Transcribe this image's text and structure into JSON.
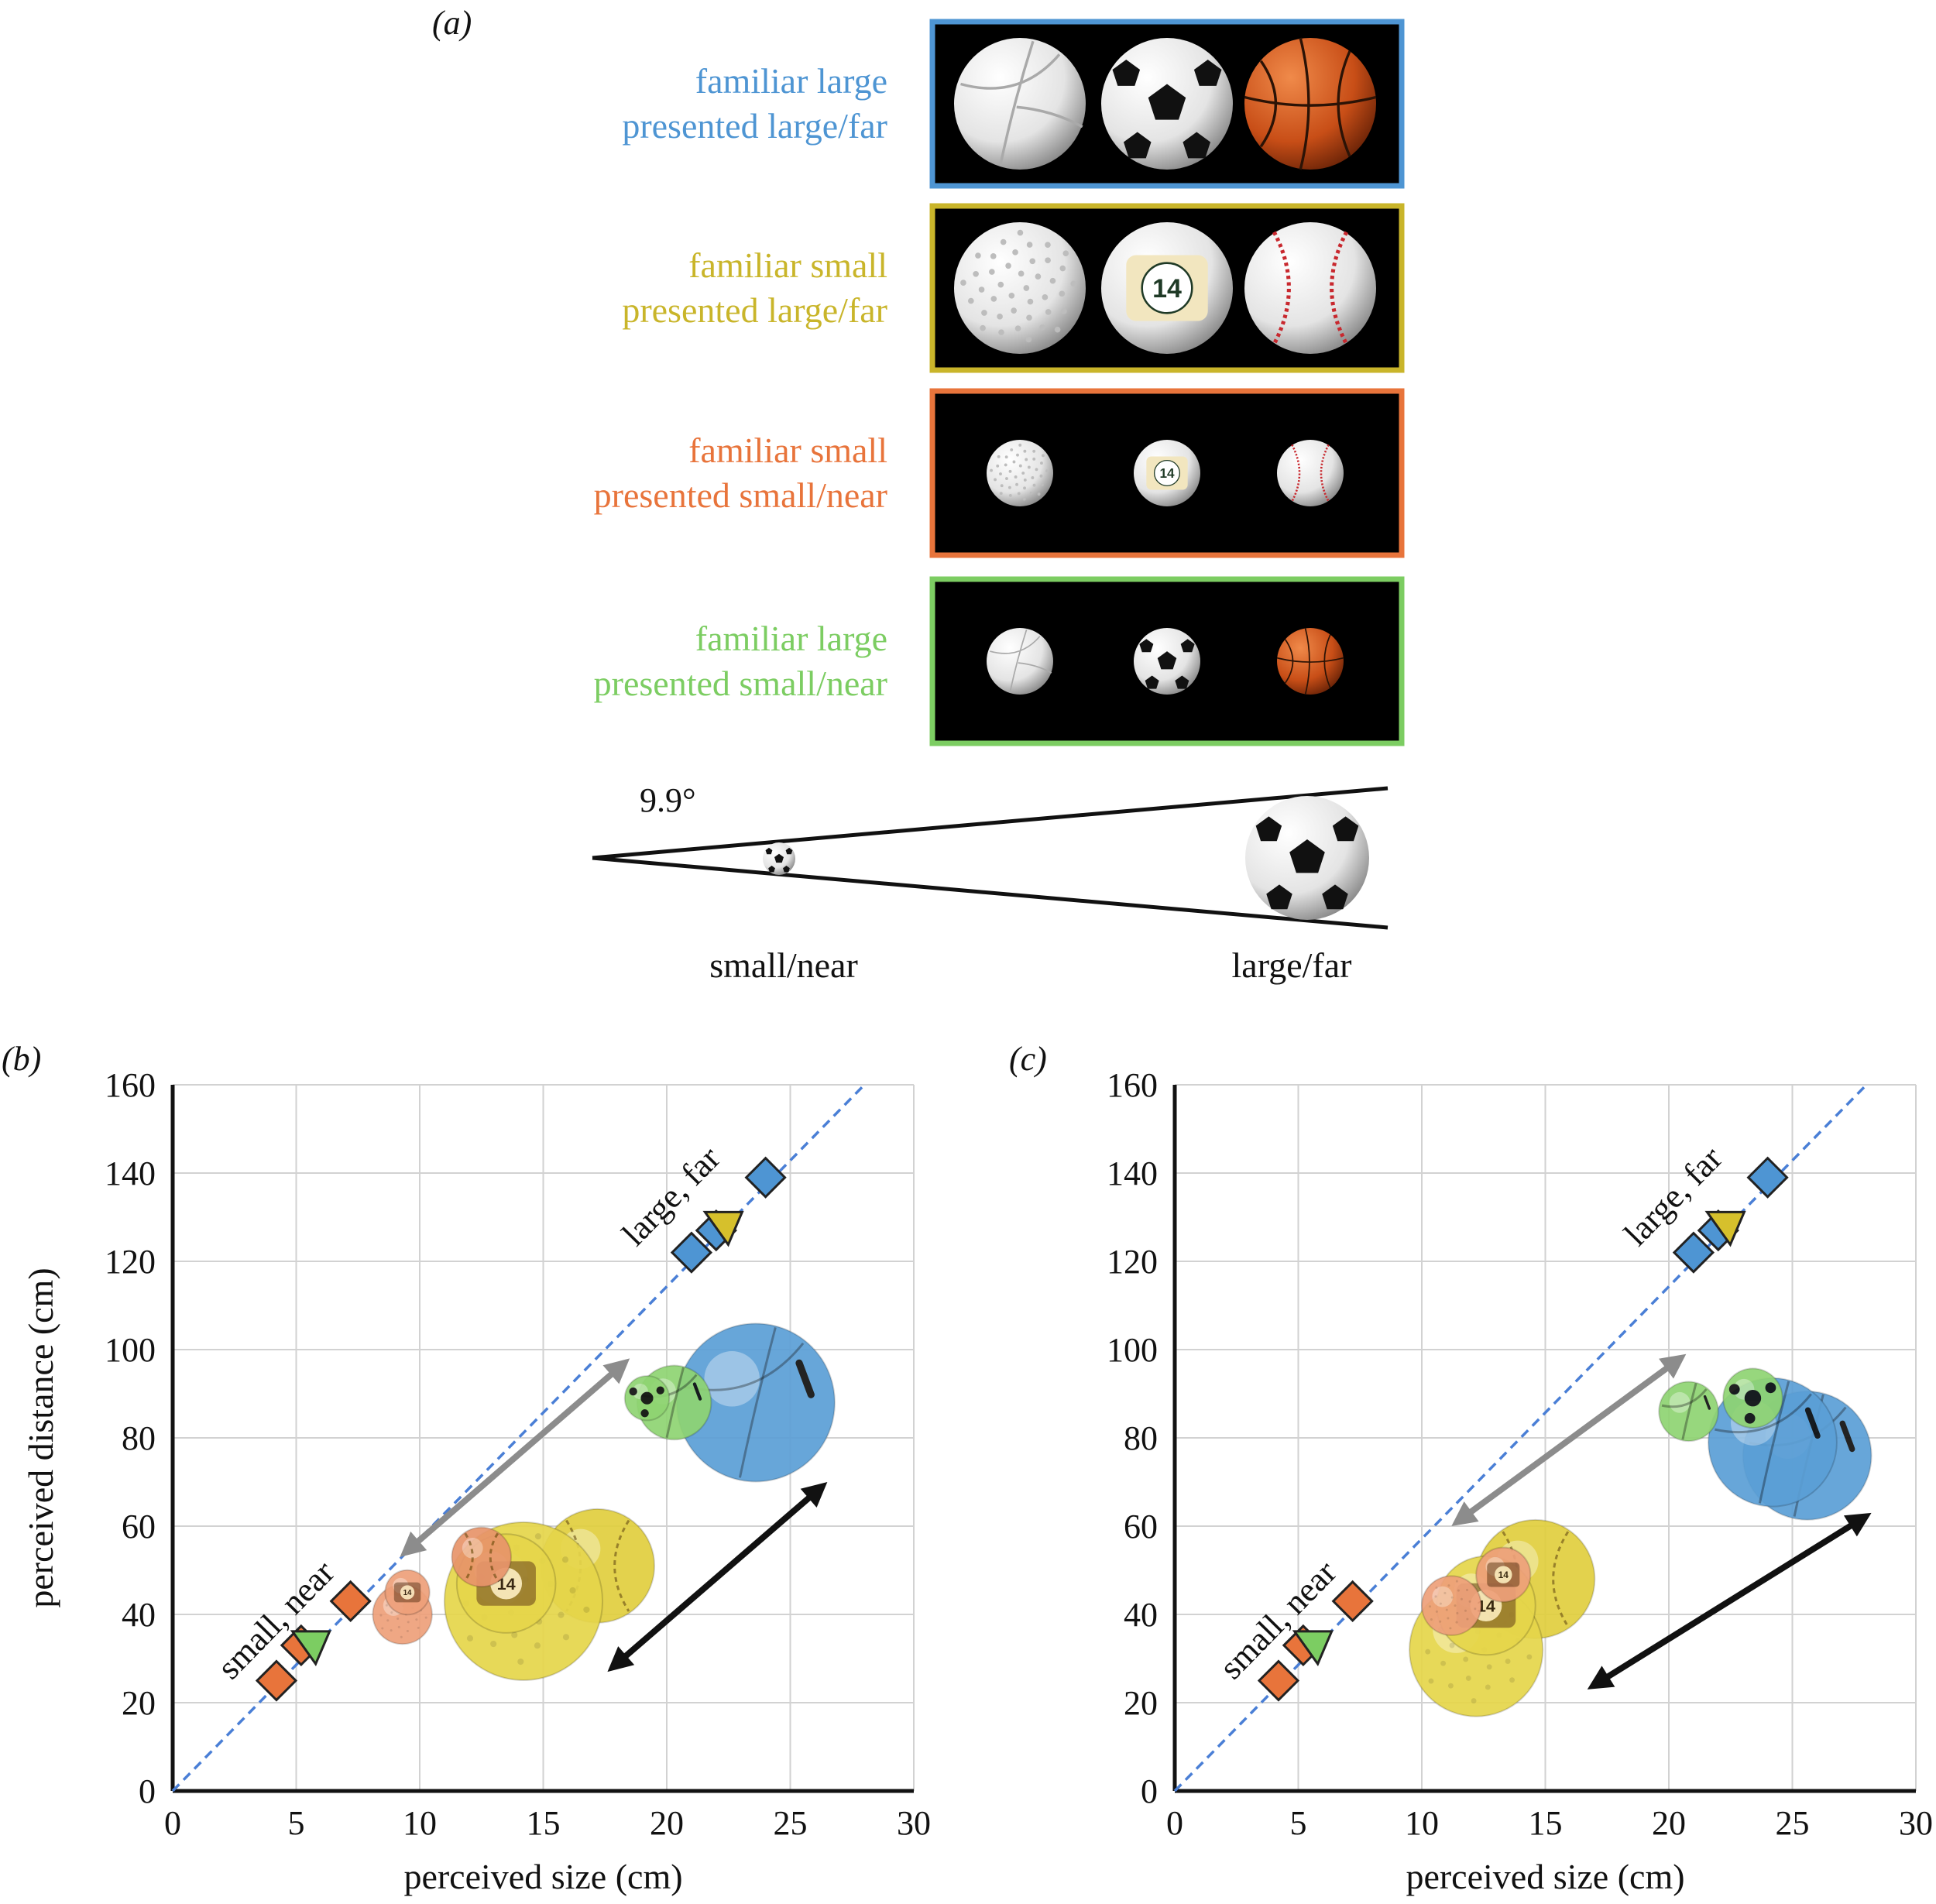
{
  "panel_a": {
    "label": "(a)",
    "rows": [
      {
        "line1": "familiar large",
        "line2": "presented large/far",
        "color": "#4e95d3",
        "balls": [
          "volleyball",
          "soccer-ball",
          "basketball"
        ],
        "size": "large"
      },
      {
        "line1": "familiar small",
        "line2": "presented large/far",
        "color": "#c9b52a",
        "balls": [
          "golf-ball",
          "billiard-ball",
          "baseball"
        ],
        "size": "large"
      },
      {
        "line1": "familiar small",
        "line2": "presented small/near",
        "color": "#e8743b",
        "balls": [
          "golf-ball",
          "billiard-ball",
          "baseball"
        ],
        "size": "small"
      },
      {
        "line1": "familiar large",
        "line2": "presented small/near",
        "color": "#7ccd62",
        "balls": [
          "volleyball",
          "soccer-ball",
          "basketball"
        ],
        "size": "small"
      }
    ],
    "billiard_number": "14",
    "angle_label": "9.9°",
    "near_label": "small/near",
    "far_label": "large/far"
  },
  "chart_data": [
    {
      "panel_label": "(b)",
      "type": "scatter",
      "xlabel": "perceived size (cm)",
      "ylabel": "perceived distance (cm)",
      "xlim": [
        0,
        30
      ],
      "ylim": [
        0,
        160
      ],
      "xticks": [
        0,
        5,
        10,
        15,
        20,
        25,
        30
      ],
      "yticks": [
        0,
        20,
        40,
        60,
        80,
        100,
        120,
        140,
        160
      ],
      "grid": true,
      "reference_line": {
        "x": [
          0,
          28
        ],
        "y": [
          0,
          160
        ],
        "style": "dashed"
      },
      "series": [
        {
          "marker": "diamond",
          "color": "#4e95d3",
          "points": [
            [
              21,
              122
            ],
            [
              22,
              127
            ],
            [
              24,
              139
            ]
          ]
        },
        {
          "marker": "triangle",
          "color": "#d6c02c",
          "points": [
            [
              22.3,
              128
            ]
          ]
        },
        {
          "marker": "diamond",
          "color": "#e8743b",
          "points": [
            [
              4.2,
              25
            ],
            [
              5.2,
              33
            ],
            [
              7.2,
              43
            ]
          ]
        },
        {
          "marker": "triangle",
          "color": "#7ccd62",
          "points": [
            [
              5.6,
              33
            ]
          ]
        }
      ],
      "annotations": [
        {
          "text": "large, far",
          "x": 20.5,
          "y": 133
        },
        {
          "text": "small, near",
          "x": 4.5,
          "y": 37
        }
      ],
      "ball_icons": [
        {
          "kind": "volleyball",
          "color": "#5b9fd6",
          "x": 23.6,
          "y": 88,
          "r": 3.2
        },
        {
          "kind": "volleyball",
          "color": "#8fd472",
          "x": 20.3,
          "y": 88,
          "r": 1.5
        },
        {
          "kind": "soccer",
          "color": "#8fd472",
          "x": 19.2,
          "y": 89,
          "r": 0.9
        },
        {
          "kind": "baseball",
          "color": "#e1cf3e",
          "x": 17.2,
          "y": 51,
          "r": 2.3
        },
        {
          "kind": "golf",
          "color": "#e6d64a",
          "x": 14.2,
          "y": 43,
          "r": 3.2
        },
        {
          "kind": "billiard",
          "color": "#e6d64a",
          "x": 13.5,
          "y": 47,
          "r": 2.0
        },
        {
          "kind": "baseball",
          "color": "#e8946a",
          "x": 12.5,
          "y": 53,
          "r": 1.2
        },
        {
          "kind": "golf",
          "color": "#eea07a",
          "x": 9.3,
          "y": 40,
          "r": 1.2
        },
        {
          "kind": "billiard",
          "color": "#eea07a",
          "x": 9.5,
          "y": 45,
          "r": 0.9
        }
      ],
      "arrows": [
        {
          "color": "#8c8c8c",
          "x1": 9.2,
          "y1": 53,
          "x2": 18.5,
          "y2": 98,
          "double": true
        },
        {
          "color": "#111111",
          "x1": 17.6,
          "y1": 27,
          "x2": 26.5,
          "y2": 70,
          "double": true
        }
      ]
    },
    {
      "panel_label": "(c)",
      "type": "scatter",
      "xlabel": "perceived size (cm)",
      "ylabel": "",
      "xlim": [
        0,
        30
      ],
      "ylim": [
        0,
        160
      ],
      "xticks": [
        0,
        5,
        10,
        15,
        20,
        25,
        30
      ],
      "yticks": [
        0,
        20,
        40,
        60,
        80,
        100,
        120,
        140,
        160
      ],
      "grid": true,
      "reference_line": {
        "x": [
          0,
          28
        ],
        "y": [
          0,
          160
        ],
        "style": "dashed"
      },
      "series": [
        {
          "marker": "diamond",
          "color": "#4e95d3",
          "points": [
            [
              21,
              122
            ],
            [
              22,
              127
            ],
            [
              24,
              139
            ]
          ]
        },
        {
          "marker": "triangle",
          "color": "#d6c02c",
          "points": [
            [
              22.3,
              128
            ]
          ]
        },
        {
          "marker": "diamond",
          "color": "#e8743b",
          "points": [
            [
              4.2,
              25
            ],
            [
              5.2,
              33
            ],
            [
              7.2,
              43
            ]
          ]
        },
        {
          "marker": "triangle",
          "color": "#7ccd62",
          "points": [
            [
              5.6,
              33
            ]
          ]
        }
      ],
      "annotations": [
        {
          "text": "large, far",
          "x": 20.5,
          "y": 133
        },
        {
          "text": "small, near",
          "x": 4.5,
          "y": 37
        }
      ],
      "ball_icons": [
        {
          "kind": "volleyball",
          "color": "#5b9fd6",
          "x": 25.6,
          "y": 76,
          "r": 2.6
        },
        {
          "kind": "volleyball",
          "color": "#5b9fd6",
          "x": 24.2,
          "y": 79,
          "r": 2.6
        },
        {
          "kind": "volleyball",
          "color": "#8fd472",
          "x": 20.8,
          "y": 86,
          "r": 1.2
        },
        {
          "kind": "soccer",
          "color": "#8fd472",
          "x": 23.4,
          "y": 89,
          "r": 1.2
        },
        {
          "kind": "baseball",
          "color": "#e1cf3e",
          "x": 14.6,
          "y": 48,
          "r": 2.4
        },
        {
          "kind": "golf",
          "color": "#e6d64a",
          "x": 12.2,
          "y": 32,
          "r": 2.7
        },
        {
          "kind": "billiard",
          "color": "#e6d64a",
          "x": 12.6,
          "y": 42,
          "r": 2.0
        },
        {
          "kind": "billiard",
          "color": "#eea07a",
          "x": 13.3,
          "y": 49,
          "r": 1.1
        },
        {
          "kind": "golf",
          "color": "#eea07a",
          "x": 11.2,
          "y": 42,
          "r": 1.2
        }
      ],
      "arrows": [
        {
          "color": "#8c8c8c",
          "x1": 11.2,
          "y1": 60,
          "x2": 20.7,
          "y2": 99,
          "double": true
        },
        {
          "color": "#111111",
          "x1": 16.7,
          "y1": 23,
          "x2": 28.2,
          "y2": 63,
          "double": true
        }
      ]
    }
  ]
}
